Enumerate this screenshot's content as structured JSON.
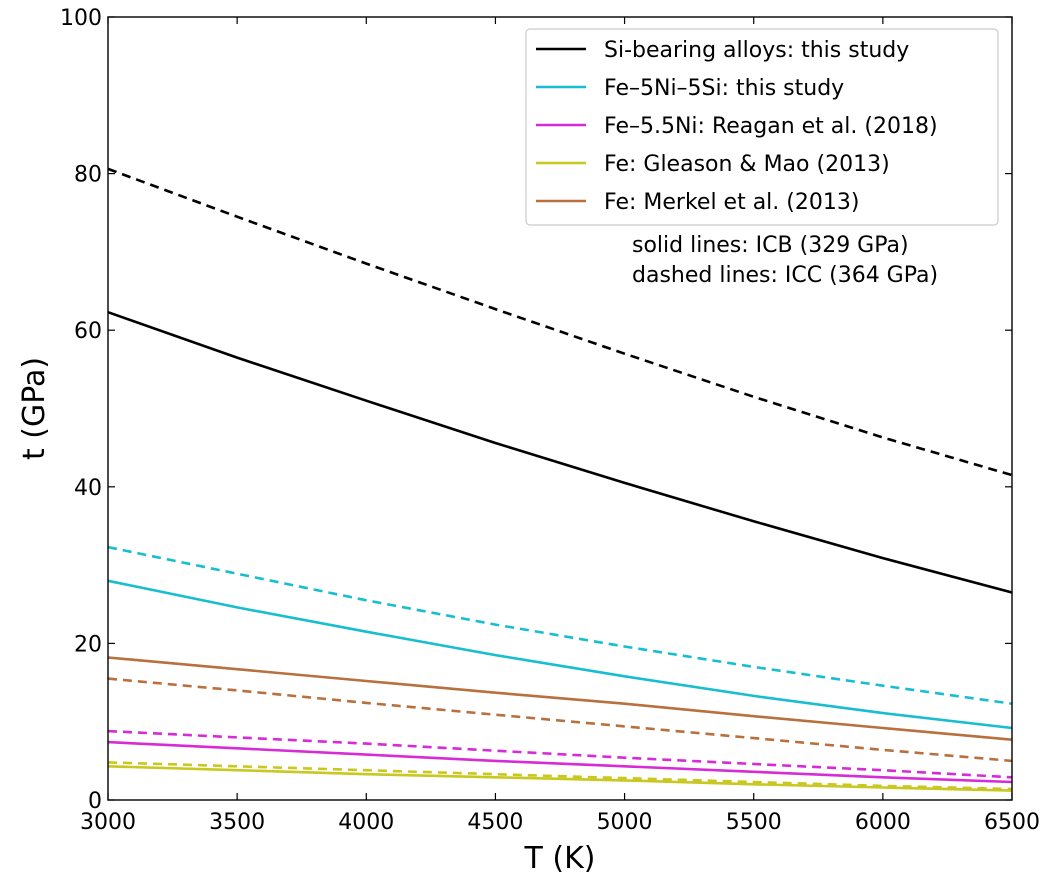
{
  "chart_data": {
    "type": "line",
    "xlabel": "T (K)",
    "ylabel": "t (GPa)",
    "xlim": [
      3000,
      6500
    ],
    "ylim": [
      0,
      100
    ],
    "xticks": [
      3000,
      3500,
      4000,
      4500,
      5000,
      5500,
      6000,
      6500
    ],
    "yticks": [
      0,
      20,
      40,
      60,
      80,
      100
    ],
    "x": [
      3000,
      3500,
      4000,
      4500,
      5000,
      5500,
      6000,
      6500
    ],
    "legend_position": "top-right",
    "series": [
      {
        "name": "Si-bearing alloys: this study",
        "color": "#000000",
        "icb": [
          62.3,
          56.5,
          51.0,
          45.6,
          40.5,
          35.6,
          30.9,
          26.5
        ],
        "icc": [
          80.6,
          74.5,
          68.5,
          62.7,
          57.0,
          51.5,
          46.3,
          41.5
        ]
      },
      {
        "name": "Fe–5Ni–5Si: this study",
        "color": "#17becf",
        "icb": [
          28.0,
          24.6,
          21.5,
          18.5,
          15.8,
          13.3,
          11.1,
          9.2
        ],
        "icc": [
          32.3,
          28.9,
          25.5,
          22.4,
          19.6,
          17.0,
          14.6,
          12.3
        ]
      },
      {
        "name": "Fe–5.5Ni: Reagan et al. (2018)",
        "color": "#d62bd6",
        "icb": [
          7.4,
          6.6,
          5.8,
          5.0,
          4.3,
          3.6,
          2.9,
          2.3
        ],
        "icc": [
          8.8,
          8.0,
          7.2,
          6.3,
          5.4,
          4.6,
          3.8,
          2.9
        ]
      },
      {
        "name": "Fe: Gleason & Mao (2013)",
        "color": "#c8c820",
        "icb": [
          4.3,
          3.8,
          3.3,
          2.9,
          2.5,
          2.0,
          1.6,
          1.2
        ],
        "icc": [
          4.8,
          4.3,
          3.8,
          3.3,
          2.8,
          2.3,
          1.8,
          1.4
        ]
      },
      {
        "name": "Fe: Merkel et al. (2013)",
        "color": "#b8703e",
        "icb": [
          18.2,
          16.7,
          15.2,
          13.7,
          12.3,
          10.7,
          9.2,
          7.7
        ],
        "icc": [
          15.5,
          14.0,
          12.4,
          10.9,
          9.4,
          7.9,
          6.4,
          5.0
        ]
      }
    ],
    "annotations": [
      "solid lines: ICB (329 GPa)",
      "dashed lines: ICC (364 GPa)"
    ]
  }
}
